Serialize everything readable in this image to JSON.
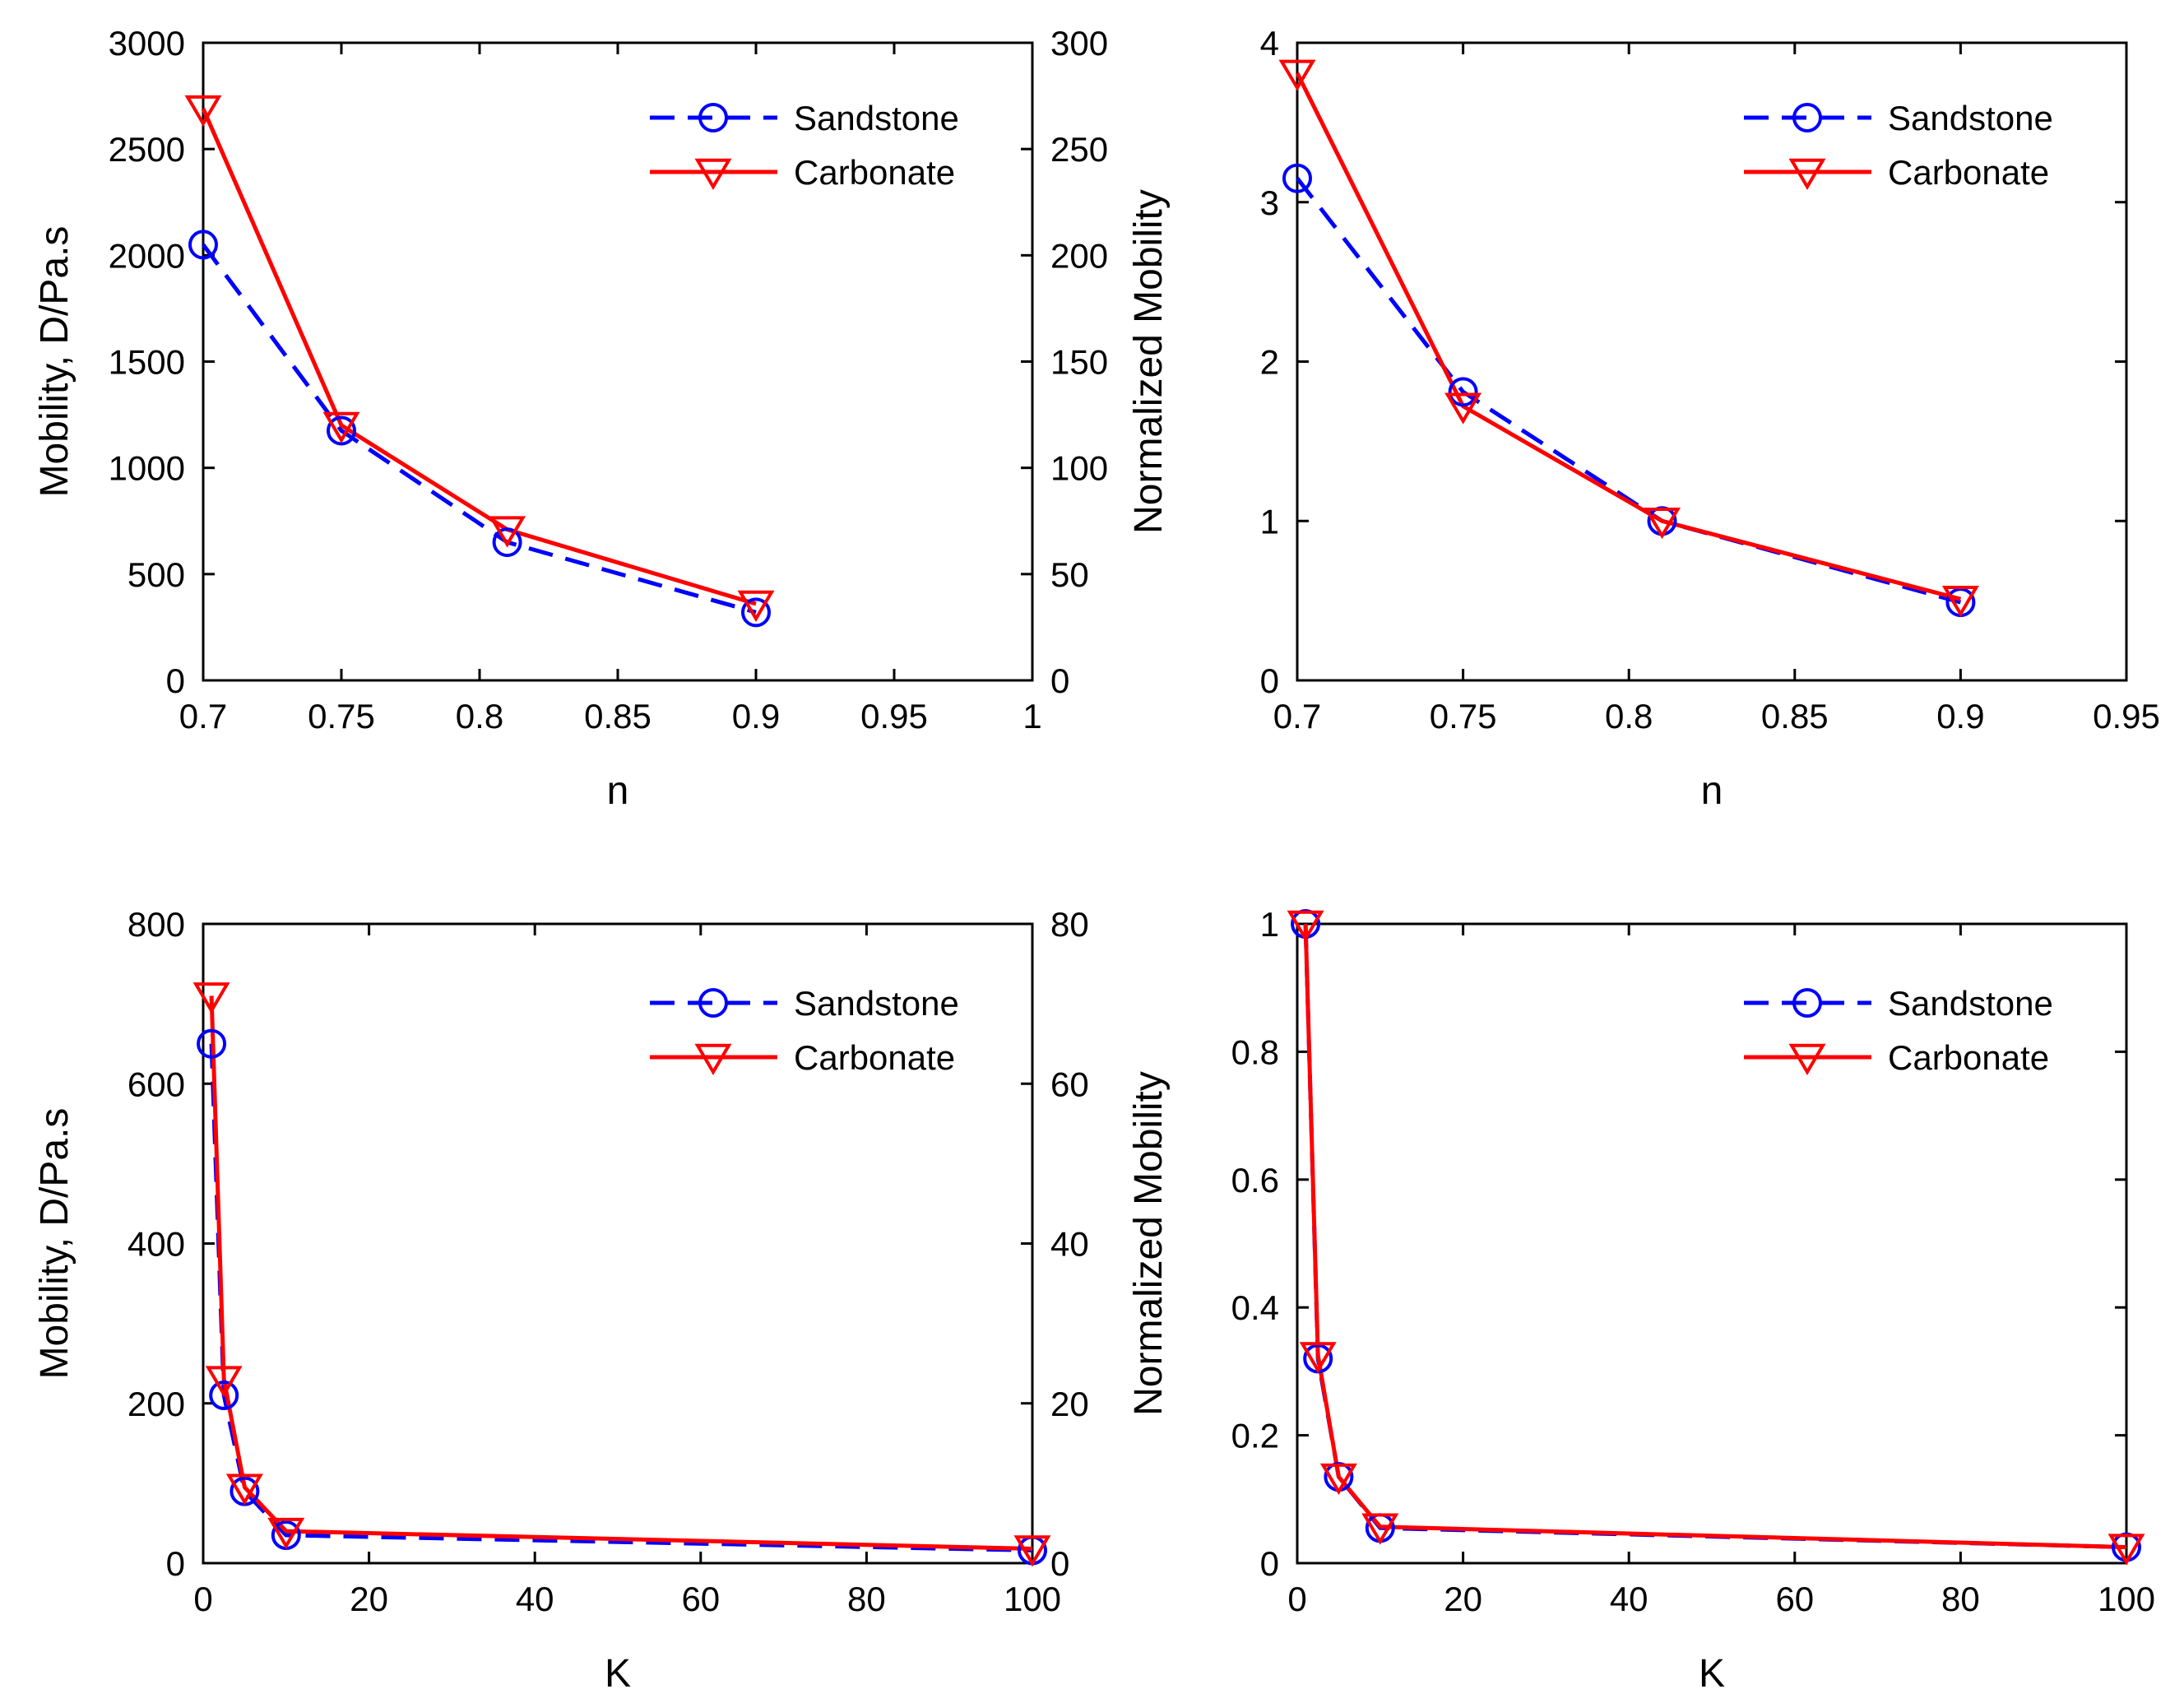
{
  "colors": {
    "sandstone": "#0000ff",
    "carbonate": "#ff0000",
    "axis": "#000000"
  },
  "chart_data": [
    {
      "type": "line",
      "xlabel": "n",
      "ylabel": "Mobility, D/Pa.s",
      "xlim": [
        0.7,
        1.0
      ],
      "ylim": [
        0,
        3000
      ],
      "y2lim": [
        0,
        300
      ],
      "xticks": [
        "0.7",
        "0.75",
        "0.8",
        "0.85",
        "0.9",
        "0.95",
        "1"
      ],
      "yticks": [
        "0",
        "500",
        "1000",
        "1500",
        "2000",
        "2500",
        "3000"
      ],
      "y2ticks": [
        "0",
        "50",
        "100",
        "150",
        "200",
        "250",
        "300"
      ],
      "legend": "top-right",
      "series": [
        {
          "name": "Sandstone",
          "x": [
            0.7,
            0.75,
            0.81,
            0.9
          ],
          "values": [
            2050,
            1175,
            650,
            320
          ],
          "style": "dashed",
          "marker": "circle"
        },
        {
          "name": "Carbonate",
          "x": [
            0.7,
            0.75,
            0.81,
            0.9
          ],
          "values": [
            2690,
            1200,
            710,
            360
          ],
          "style": "solid",
          "marker": "triangle-down"
        }
      ]
    },
    {
      "type": "line",
      "xlabel": "n",
      "ylabel": "Normalized Mobility",
      "xlim": [
        0.7,
        0.95
      ],
      "ylim": [
        0,
        4
      ],
      "xticks": [
        "0.7",
        "0.75",
        "0.8",
        "0.85",
        "0.9",
        "0.95"
      ],
      "yticks": [
        "0",
        "1",
        "2",
        "3",
        "4"
      ],
      "legend": "top-right",
      "series": [
        {
          "name": "Sandstone",
          "x": [
            0.7,
            0.75,
            0.81,
            0.9
          ],
          "values": [
            3.15,
            1.81,
            1.0,
            0.49
          ],
          "style": "dashed",
          "marker": "circle"
        },
        {
          "name": "Carbonate",
          "x": [
            0.7,
            0.75,
            0.81,
            0.9
          ],
          "values": [
            3.81,
            1.72,
            1.0,
            0.51
          ],
          "style": "solid",
          "marker": "triangle-down"
        }
      ]
    },
    {
      "type": "line",
      "xlabel": "K",
      "ylabel": "Mobility, D/Pa.s",
      "xlim": [
        0,
        100
      ],
      "ylim": [
        0,
        800
      ],
      "y2lim": [
        0,
        80
      ],
      "xticks": [
        "0",
        "20",
        "40",
        "60",
        "80",
        "100"
      ],
      "yticks": [
        "0",
        "200",
        "400",
        "600",
        "800"
      ],
      "y2ticks": [
        "0",
        "20",
        "40",
        "60",
        "80"
      ],
      "legend": "top-right",
      "series": [
        {
          "name": "Sandstone",
          "x": [
            1,
            2.5,
            5,
            10,
            100
          ],
          "values": [
            650,
            210,
            90,
            35,
            16
          ],
          "style": "dashed",
          "marker": "circle"
        },
        {
          "name": "Carbonate",
          "x": [
            1,
            2.5,
            5,
            10,
            100
          ],
          "values": [
            710,
            230,
            95,
            40,
            18
          ],
          "style": "solid",
          "marker": "triangle-down"
        }
      ]
    },
    {
      "type": "line",
      "xlabel": "K",
      "ylabel": "Normalized Mobility",
      "xlim": [
        0,
        100
      ],
      "ylim": [
        0,
        1
      ],
      "xticks": [
        "0",
        "20",
        "40",
        "60",
        "80",
        "100"
      ],
      "yticks": [
        "0",
        "0.2",
        "0.4",
        "0.6",
        "0.8",
        "1"
      ],
      "legend": "top-right",
      "series": [
        {
          "name": "Sandstone",
          "x": [
            1,
            2.5,
            5,
            10,
            100
          ],
          "values": [
            1.0,
            0.32,
            0.135,
            0.055,
            0.025
          ],
          "style": "dashed",
          "marker": "circle"
        },
        {
          "name": "Carbonate",
          "x": [
            1,
            2.5,
            5,
            10,
            100
          ],
          "values": [
            1.0,
            0.325,
            0.135,
            0.057,
            0.025
          ],
          "style": "solid",
          "marker": "triangle-down"
        }
      ]
    }
  ]
}
